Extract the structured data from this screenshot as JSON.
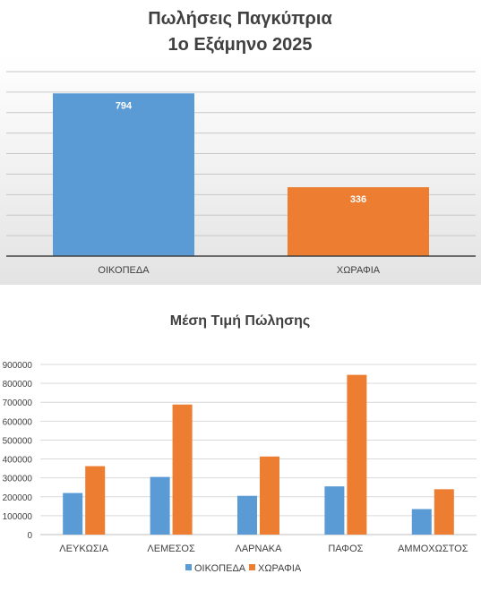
{
  "chart_data": [
    {
      "type": "bar",
      "title_lines": [
        "Πωλήσεις Παγκύπρια",
        "1ο Εξάμηνο 2025"
      ],
      "categories": [
        "ΟΙΚΟΠΕΔΑ",
        "ΧΩΡΑΦΙΑ"
      ],
      "values": [
        794,
        336
      ],
      "bar_colors": [
        "#5b9bd5",
        "#ed7d31"
      ],
      "ylim": [
        0,
        900
      ],
      "y_axis_labels_shown": false,
      "data_labels": true,
      "grid": true,
      "legend": "none"
    },
    {
      "type": "bar",
      "title": "Μέση Τιμή Πώλησης",
      "categories": [
        "ΛΕΥΚΩΣΙΑ",
        "ΛΕΜΕΣΟΣ",
        "ΛΑΡΝΑΚΑ",
        "ΠΑΦΟΣ",
        "ΑΜΜΟΧΩΣΤΟΣ"
      ],
      "series": [
        {
          "name": "ΟΙΚΟΠΕΔΑ",
          "color": "#5b9bd5",
          "values": [
            220000,
            305000,
            205000,
            255000,
            135000
          ]
        },
        {
          "name": "ΧΩΡΑΦΙΑ",
          "color": "#ed7d31",
          "values": [
            362000,
            688000,
            413000,
            845000,
            240000
          ]
        }
      ],
      "ylim": [
        0,
        900000
      ],
      "yticks": [
        0,
        100000,
        200000,
        300000,
        400000,
        500000,
        600000,
        700000,
        800000,
        900000
      ],
      "ytick_labels": [
        "0",
        "100000",
        "200000",
        "300000",
        "400000",
        "500000",
        "600000",
        "700000",
        "800000",
        "900000"
      ],
      "grid": true,
      "legend": "bottom"
    }
  ]
}
